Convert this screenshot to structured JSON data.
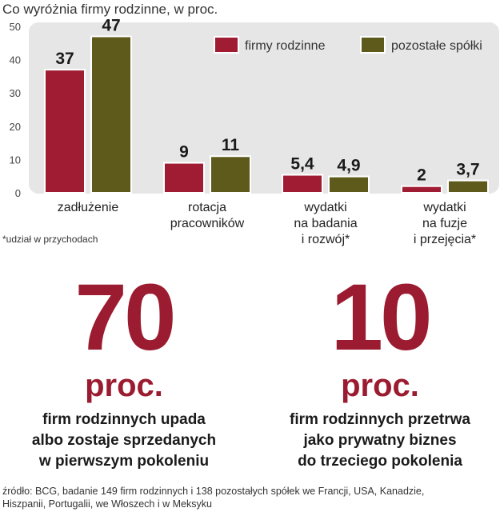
{
  "chart_data": {
    "type": "bar",
    "title": "Co wyróżnia firmy rodzinne, w proc.",
    "categories": [
      [
        "zadłużenie"
      ],
      [
        "rotacja",
        "pracowników"
      ],
      [
        "wydatki",
        "na badania",
        "i rozwój*"
      ],
      [
        "wydatki",
        "na fuzje",
        "i przejęcia*"
      ]
    ],
    "series": [
      {
        "name": "firmy rodzinne",
        "color": "#a01c33",
        "values": [
          37,
          9,
          5.4,
          2
        ],
        "labels": [
          "37",
          "9",
          "5,4",
          "2"
        ]
      },
      {
        "name": "pozostałe spółki",
        "color": "#5e5a1c",
        "values": [
          47,
          11,
          4.9,
          3.7
        ],
        "labels": [
          "47",
          "11",
          "4,9",
          "3,7"
        ]
      }
    ],
    "yticks": [
      "0",
      "10",
      "20",
      "30",
      "40",
      "50"
    ],
    "ylim": [
      0,
      50
    ],
    "legend": "top-right",
    "grid": false,
    "background": "#e6e6e6"
  },
  "footnote": "*udział w przychodach",
  "stats": [
    {
      "number": "70",
      "unit": "proc.",
      "lines": [
        "firm rodzinnych upada",
        "albo zostaje sprzedanych",
        "w pierwszym pokoleniu"
      ]
    },
    {
      "number": "10",
      "unit": "proc.",
      "lines": [
        "firm rodzinnych przetrwa",
        "jako prywatny biznes",
        "do trzeciego pokolenia"
      ]
    }
  ],
  "source": [
    "źródło: BCG, badanie 149 firm rodzinnych i 138 pozostałych spółek we Francji, USA, Kanadzie,",
    "Hiszpanii, Portugalii, we Włoszech i w Meksyku"
  ]
}
